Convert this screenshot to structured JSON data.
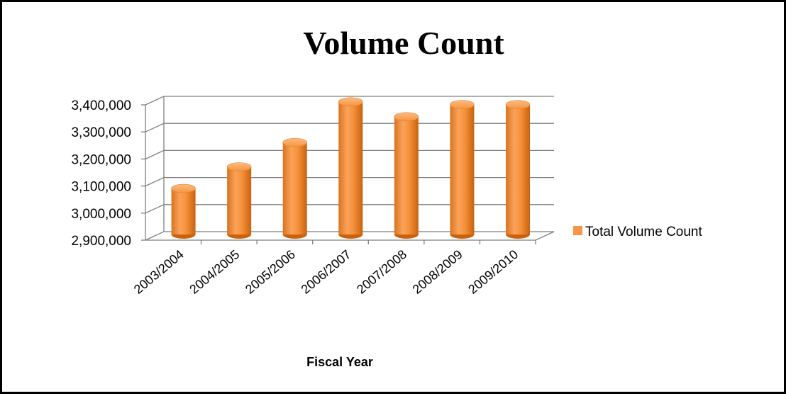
{
  "chart_data": {
    "type": "bar",
    "title": "Volume Count",
    "xlabel": "Fiscal Year",
    "ylabel": "",
    "categories": [
      "2003/2004",
      "2004/2005",
      "2005/2006",
      "2006/2007",
      "2007/2008",
      "2008/2009",
      "2009/2010"
    ],
    "series": [
      {
        "name": "Total Volume Count",
        "values": [
          3070000,
          3150000,
          3240000,
          3390000,
          3335000,
          3380000,
          3380000
        ],
        "color": "#F79646"
      }
    ],
    "ylim": [
      2900000,
      3400000
    ],
    "yticks": [
      "2,900,000",
      "3,000,000",
      "3,100,000",
      "3,200,000",
      "3,300,000",
      "3,400,000"
    ],
    "grid": true,
    "legend_position": "right",
    "style": "3d-cylinder"
  }
}
